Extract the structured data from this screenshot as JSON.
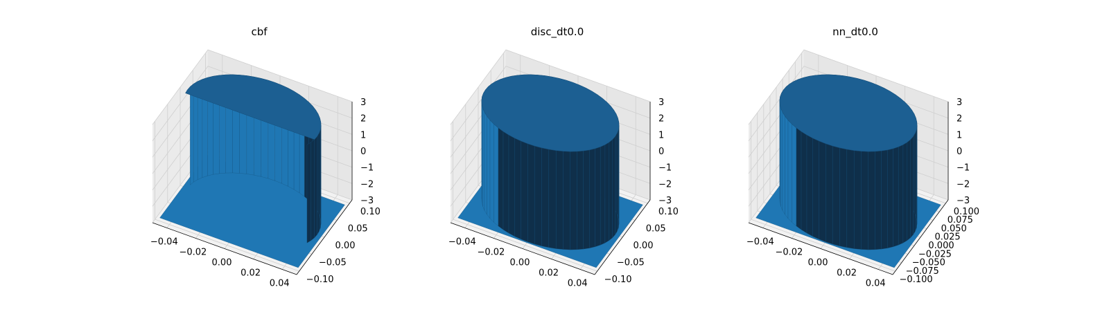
{
  "figure": {
    "background": "#ffffff"
  },
  "style": {
    "surface_color": "#1f77b4",
    "surface_dark": "#0f2f4a",
    "pane_colors": [
      "#f2f2f2",
      "#ebebeb",
      "#e6e6e6"
    ],
    "grid_color": "#cfcfcf"
  },
  "chart_data": [
    {
      "type": "surface3d",
      "title": "cbf",
      "shape": "half-disk",
      "xlabel": "",
      "ylabel": "",
      "zlabel": "",
      "xlim": [
        -0.05,
        0.05
      ],
      "ylim": [
        -0.11,
        0.11
      ],
      "zlim": [
        -3,
        3
      ],
      "x_ticks": [
        -0.04,
        -0.02,
        0.0,
        0.02,
        0.04
      ],
      "x_tick_labels": [
        "−0.04",
        "−0.02",
        "0.00",
        "0.02",
        "0.04"
      ],
      "y_ticks": [
        -0.1,
        -0.05,
        0.0,
        0.05,
        0.1
      ],
      "y_tick_labels": [
        "−0.10",
        "−0.05",
        "0.00",
        "0.05",
        "0.10"
      ],
      "z_ticks": [
        -3,
        -2,
        -1,
        0,
        1,
        2,
        3
      ],
      "z_tick_labels": [
        "−3",
        "−2",
        "−1",
        "0",
        "1",
        "2",
        "3"
      ],
      "grid": true,
      "surface": {
        "base_z": -3,
        "top_z": 3,
        "center": [
          0,
          0
        ],
        "radius": 0.045,
        "cut": "half-disk with S-shaped edge"
      }
    },
    {
      "type": "surface3d",
      "title": "disc_dt0.0",
      "shape": "disk",
      "xlabel": "",
      "ylabel": "",
      "zlabel": "",
      "xlim": [
        -0.05,
        0.05
      ],
      "ylim": [
        -0.11,
        0.11
      ],
      "zlim": [
        -3,
        3
      ],
      "x_ticks": [
        -0.04,
        -0.02,
        0.0,
        0.02,
        0.04
      ],
      "x_tick_labels": [
        "−0.04",
        "−0.02",
        "0.00",
        "0.02",
        "0.04"
      ],
      "y_ticks": [
        -0.1,
        -0.05,
        0.0,
        0.05,
        0.1
      ],
      "y_tick_labels": [
        "−0.10",
        "−0.05",
        "0.00",
        "0.05",
        "0.10"
      ],
      "z_ticks": [
        -3,
        -2,
        -1,
        0,
        1,
        2,
        3
      ],
      "z_tick_labels": [
        "−3",
        "−2",
        "−1",
        "0",
        "1",
        "2",
        "3"
      ],
      "grid": true,
      "surface": {
        "base_z": -3,
        "top_z": 3,
        "center": [
          0,
          0
        ],
        "radius": 0.045,
        "cut": "full disk"
      }
    },
    {
      "type": "surface3d",
      "title": "nn_dt0.0",
      "shape": "disk",
      "xlabel": "",
      "ylabel": "",
      "zlabel": "",
      "xlim": [
        -0.05,
        0.05
      ],
      "ylim": [
        -0.11,
        0.11
      ],
      "zlim": [
        -3,
        3
      ],
      "x_ticks": [
        -0.04,
        -0.02,
        0.0,
        0.02,
        0.04
      ],
      "x_tick_labels": [
        "−0.04",
        "−0.02",
        "0.00",
        "0.02",
        "0.04"
      ],
      "y_ticks": [
        -0.1,
        -0.075,
        -0.05,
        -0.025,
        0.0,
        0.025,
        0.05,
        0.075,
        0.1
      ],
      "y_tick_labels": [
        "−0.100",
        "−0.075",
        "−0.050",
        "−0.025",
        "0.000",
        "0.025",
        "0.050",
        "0.075",
        "0.100"
      ],
      "z_ticks": [
        -3,
        -2,
        -1,
        0,
        1,
        2,
        3
      ],
      "z_tick_labels": [
        "−3",
        "−2",
        "−1",
        "0",
        "1",
        "2",
        "3"
      ],
      "grid": true,
      "surface": {
        "base_z": -3,
        "top_z": 3,
        "center": [
          0,
          0
        ],
        "radius": 0.045,
        "cut": "full disk"
      }
    }
  ]
}
